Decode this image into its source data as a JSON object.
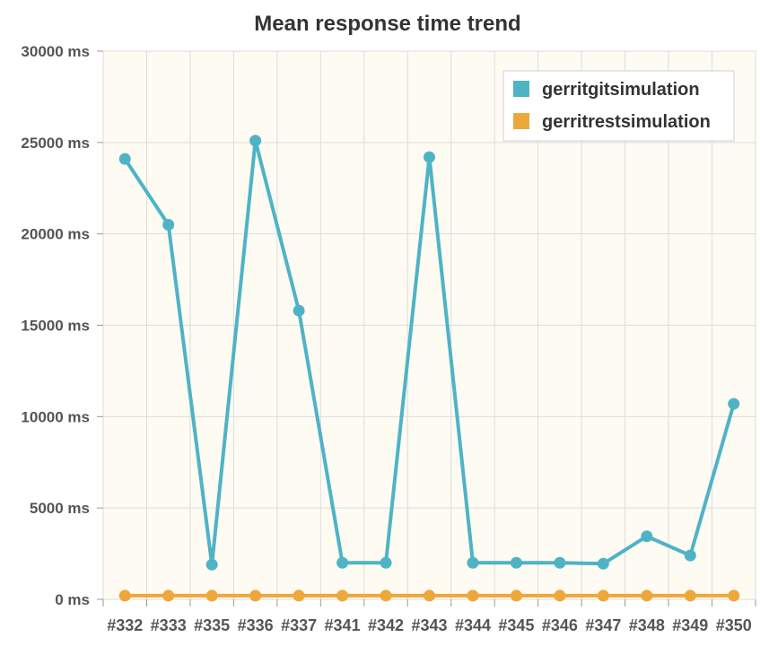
{
  "chart_data": {
    "type": "line",
    "title": "Mean response time trend",
    "xlabel": "",
    "ylabel": "",
    "y_unit_suffix": " ms",
    "ylim": [
      0,
      30000
    ],
    "y_ticks": [
      0,
      5000,
      10000,
      15000,
      20000,
      25000,
      30000
    ],
    "y_tick_labels": [
      "0 ms",
      "5000 ms",
      "10000 ms",
      "15000 ms",
      "20000 ms",
      "25000 ms",
      "30000 ms"
    ],
    "categories": [
      "#332",
      "#333",
      "#335",
      "#336",
      "#337",
      "#341",
      "#342",
      "#343",
      "#344",
      "#345",
      "#346",
      "#347",
      "#348",
      "#349",
      "#350"
    ],
    "grid": true,
    "legend_position": "top-right",
    "plot_background": "#fdfbf2",
    "series": [
      {
        "name": "gerritgitsimulation",
        "color": "#4fb3c6",
        "values": [
          24100,
          20500,
          1900,
          25100,
          15800,
          2000,
          2000,
          24200,
          2000,
          2000,
          2000,
          1950,
          3450,
          2400,
          10700
        ]
      },
      {
        "name": "gerritrestsimulation",
        "color": "#eea73b",
        "values": [
          200,
          200,
          200,
          200,
          200,
          200,
          200,
          200,
          200,
          200,
          200,
          200,
          200,
          200,
          200
        ]
      }
    ]
  }
}
